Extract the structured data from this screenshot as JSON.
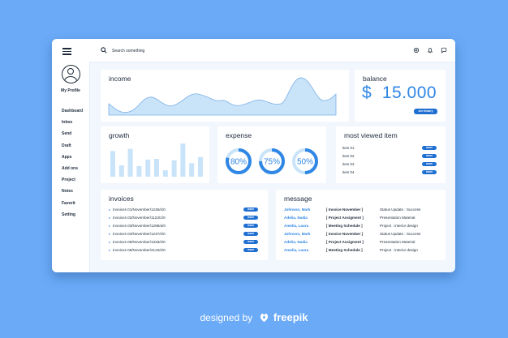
{
  "profile": {
    "label": "My Profile"
  },
  "sidebar": {
    "items": [
      {
        "label": "Dashboard"
      },
      {
        "label": "Inbox"
      },
      {
        "label": "Send"
      },
      {
        "label": "Draft"
      },
      {
        "label": "Apps"
      },
      {
        "label": "Add ons"
      },
      {
        "label": "Project"
      },
      {
        "label": "Notes"
      },
      {
        "label": "Favorit"
      },
      {
        "label": "Setting"
      }
    ]
  },
  "search": {
    "placeholder": "Search something"
  },
  "income": {
    "title": "income"
  },
  "balance": {
    "title": "balance",
    "currency": "$",
    "amount": "15.000",
    "button": "see history"
  },
  "growth": {
    "title": "growth",
    "bars": [
      0.72,
      0.32,
      0.78,
      0.3,
      0.48,
      0.5,
      0.18,
      0.46,
      0.93,
      0.38,
      0.55
    ]
  },
  "expense": {
    "title": "expense",
    "gauges": [
      {
        "value": 80,
        "label": "80%"
      },
      {
        "value": 75,
        "label": "75%"
      },
      {
        "value": 50,
        "label": "50%"
      }
    ]
  },
  "most_viewed": {
    "title": "most viewed item",
    "items": [
      {
        "label": "item 01",
        "button": "more"
      },
      {
        "label": "item 02",
        "button": "more"
      },
      {
        "label": "item 03",
        "button": "more"
      },
      {
        "label": "item 04",
        "button": "more"
      }
    ]
  },
  "invoices": {
    "title": "invoices",
    "rows": [
      {
        "label": "Invoices 01/November/1245/s/0",
        "button": "more"
      },
      {
        "label": "Invoices 02/November/1123/1/0",
        "button": "more"
      },
      {
        "label": "Invoices 03/November/1298/a/0",
        "button": "more"
      },
      {
        "label": "Invoices 04/November/1247/s/0",
        "button": "more"
      },
      {
        "label": "Invoices 05/November/1333/s/0",
        "button": "more"
      },
      {
        "label": "Invoices 06/November/2134/s/0",
        "button": "more"
      }
    ]
  },
  "message": {
    "title": "message",
    "rows": [
      {
        "name": "Johnson, Mark",
        "category": "[ Invoice November ]",
        "note": "Status Update : Success"
      },
      {
        "name": "Adelia, Nadia",
        "category": "[ Project Assigment ]",
        "note": "Presentation Material"
      },
      {
        "name": "Amelia, Laura",
        "category": "[ Meeting Schedule ]",
        "note": "Project : interior design"
      },
      {
        "name": "Johnson, Mark",
        "category": "[ Invoice November ]",
        "note": "Status Update : Success"
      },
      {
        "name": "Adelia, Nadia",
        "category": "[ Project Assigment ]",
        "note": "Presentation Material"
      },
      {
        "name": "Amelia, Laura",
        "category": "[ Meeting Schedule ]",
        "note": "Project : interior design"
      }
    ]
  },
  "footer": {
    "prefix": "designed by",
    "brand": "freepik"
  },
  "colors": {
    "accent": "#2f86e4",
    "button": "#1f6fd1",
    "background": "#6aaaf7",
    "chart_fill": "#c9e3f9"
  }
}
